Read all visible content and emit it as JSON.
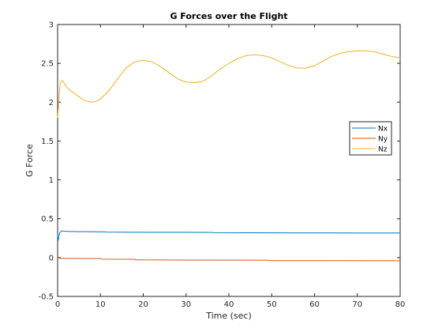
{
  "chart_data": {
    "type": "line",
    "title": "G Forces over the Flight",
    "xlabel": "Time (sec)",
    "ylabel": "G Force",
    "xlim": [
      0,
      80
    ],
    "ylim": [
      -0.5,
      3
    ],
    "xticks": [
      0,
      10,
      20,
      30,
      40,
      50,
      60,
      70,
      80
    ],
    "xtick_labels": [
      "0",
      "10",
      "20",
      "30",
      "40",
      "50",
      "60",
      "70",
      "80"
    ],
    "yticks": [
      -0.5,
      0,
      0.5,
      1,
      1.5,
      2,
      2.5,
      3
    ],
    "ytick_labels": [
      "-0.5",
      "0",
      "0.5",
      "1",
      "1.5",
      "2",
      "2.5",
      "3"
    ],
    "grid": false,
    "legend_position": "right",
    "series": [
      {
        "name": "Nx",
        "color": "#0072bd",
        "x": [
          0,
          0.1,
          0.2,
          0.3,
          0.5,
          0.8,
          1,
          1.5,
          2,
          3,
          5,
          8,
          11,
          11.5,
          20,
          30,
          36,
          36.5,
          45,
          55,
          60,
          70,
          80
        ],
        "y": [
          0.29,
          0.22,
          0.24,
          0.28,
          0.32,
          0.335,
          0.345,
          0.34,
          0.338,
          0.336,
          0.334,
          0.333,
          0.332,
          0.328,
          0.326,
          0.325,
          0.324,
          0.32,
          0.319,
          0.318,
          0.318,
          0.317,
          0.317
        ]
      },
      {
        "name": "Ny",
        "color": "#d95319",
        "x": [
          0,
          0.2,
          0.5,
          1,
          2,
          5,
          10,
          10.3,
          18,
          18.3,
          30,
          49,
          49.3,
          60,
          80
        ],
        "y": [
          0.02,
          0.0,
          -0.008,
          -0.01,
          -0.01,
          -0.012,
          -0.012,
          -0.02,
          -0.022,
          -0.03,
          -0.032,
          -0.033,
          -0.04,
          -0.04,
          -0.041
        ]
      },
      {
        "name": "Nz",
        "color": "#edb120",
        "x": [
          0,
          0.2,
          0.4,
          0.6,
          0.8,
          1,
          1.3,
          1.6,
          2,
          3,
          4,
          5,
          6,
          7,
          8,
          9,
          10,
          12,
          14,
          16,
          18,
          20,
          22,
          24,
          26,
          28,
          30,
          32,
          34,
          36,
          38,
          40,
          42,
          44,
          46,
          48,
          50,
          52,
          54,
          56,
          58,
          60,
          62,
          64,
          66,
          68,
          70,
          72,
          74,
          76,
          78,
          80
        ],
        "y": [
          1.8,
          1.95,
          2.12,
          2.22,
          2.27,
          2.28,
          2.27,
          2.24,
          2.2,
          2.15,
          2.11,
          2.07,
          2.03,
          2.01,
          2.0,
          2.01,
          2.04,
          2.15,
          2.3,
          2.44,
          2.52,
          2.54,
          2.52,
          2.46,
          2.38,
          2.3,
          2.26,
          2.25,
          2.27,
          2.34,
          2.43,
          2.5,
          2.56,
          2.6,
          2.61,
          2.6,
          2.57,
          2.52,
          2.47,
          2.44,
          2.44,
          2.47,
          2.53,
          2.59,
          2.63,
          2.65,
          2.66,
          2.66,
          2.65,
          2.62,
          2.59,
          2.57
        ]
      }
    ]
  }
}
